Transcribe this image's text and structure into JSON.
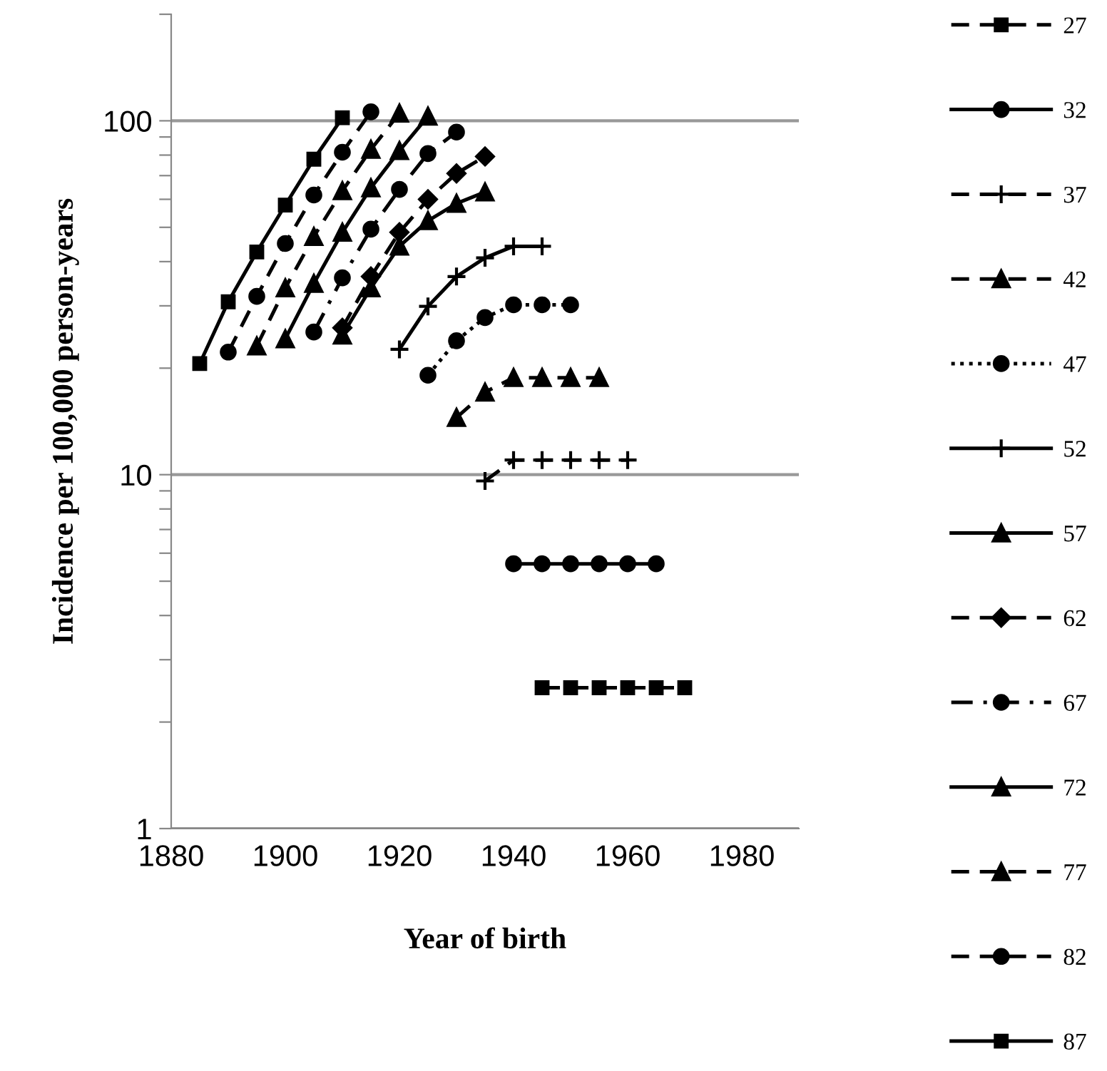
{
  "chart_data": {
    "type": "line",
    "xlabel": "Year of birth",
    "ylabel": "Incidence per 100,000 person-years",
    "log": "y",
    "xlim": [
      1880,
      1990
    ],
    "xticks": [
      1880,
      1900,
      1920,
      1940,
      1960,
      1980
    ],
    "ylim": [
      1,
      200
    ],
    "yticks": [
      1,
      {
        "value": 2,
        "label": null
      },
      {
        "value": 3,
        "label": null
      },
      {
        "value": 4,
        "label": null
      },
      {
        "value": 5,
        "label": null
      },
      {
        "value": 6,
        "label": null
      },
      {
        "value": 7,
        "label": null
      },
      {
        "value": 8,
        "label": null
      },
      {
        "value": 9,
        "label": null
      },
      10,
      {
        "value": 20,
        "label": null
      },
      {
        "value": 30,
        "label": null
      },
      {
        "value": 40,
        "label": null
      },
      {
        "value": 50,
        "label": null
      },
      {
        "value": 60,
        "label": null
      },
      {
        "value": 70,
        "label": null
      },
      {
        "value": 80,
        "label": null
      },
      {
        "value": 90,
        "label": null
      },
      100,
      {
        "value": 200,
        "label": null
      }
    ],
    "grid": "y",
    "legend": "right",
    "series": [
      {
        "name": "27",
        "color": "#000000",
        "marker": "square",
        "line_style": "dashed",
        "x": [
          1945,
          1950,
          1955,
          1960,
          1965,
          1970
        ],
        "values": [
          2.5,
          2.5,
          2.5,
          2.5,
          2.5,
          2.5
        ]
      },
      {
        "name": "32",
        "color": "#000000",
        "marker": "circle",
        "line_style": "solid",
        "x": [
          1940,
          1945,
          1950,
          1955,
          1960,
          1965
        ],
        "values": [
          5.6,
          5.6,
          5.6,
          5.6,
          5.6,
          5.6
        ]
      },
      {
        "name": "37",
        "color": "#000000",
        "marker": "cross",
        "line_style": "dashed",
        "x": [
          1935,
          1940,
          1945,
          1950,
          1955,
          1960
        ],
        "values": [
          9.6,
          11,
          11,
          11,
          11,
          11
        ]
      },
      {
        "name": "42",
        "color": "#000000",
        "marker": "triangle",
        "line_style": "dashed",
        "x": [
          1930,
          1935,
          1940,
          1945,
          1950,
          1955
        ],
        "values": [
          14.5,
          17.1,
          18.8,
          18.8,
          18.8,
          18.8
        ]
      },
      {
        "name": "47",
        "color": "#000000",
        "marker": "circle",
        "line_style": "dotted",
        "x": [
          1925,
          1930,
          1935,
          1940,
          1945,
          1950
        ],
        "values": [
          19.1,
          23.9,
          27.8,
          30.2,
          30.2,
          30.2
        ]
      },
      {
        "name": "52",
        "color": "#000000",
        "marker": "cross",
        "line_style": "solid",
        "x": [
          1920,
          1925,
          1930,
          1935,
          1940,
          1945
        ],
        "values": [
          22.6,
          29.9,
          36.3,
          41,
          44.2,
          44.2
        ]
      },
      {
        "name": "57",
        "color": "#000000",
        "marker": "triangle",
        "line_style": "solid",
        "x": [
          1910,
          1915,
          1920,
          1925,
          1930,
          1935
        ],
        "values": [
          24.8,
          33.7,
          44.2,
          52.2,
          58.4,
          62.9
        ]
      },
      {
        "name": "62",
        "color": "#000000",
        "marker": "diamond",
        "line_style": "dashed",
        "x": [
          1910,
          1915,
          1920,
          1925,
          1930,
          1935
        ],
        "values": [
          26,
          36.3,
          48.4,
          60,
          71,
          79.3
        ]
      },
      {
        "name": "67",
        "color": "#000000",
        "marker": "circle",
        "line_style": "dashdot",
        "x": [
          1905,
          1910,
          1915,
          1920,
          1925,
          1930
        ],
        "values": [
          25.3,
          36,
          49.4,
          64,
          80.8,
          92.9
        ]
      },
      {
        "name": "72",
        "color": "#000000",
        "marker": "triangle",
        "line_style": "solid",
        "x": [
          1900,
          1905,
          1910,
          1915,
          1920,
          1925
        ],
        "values": [
          24.2,
          34.7,
          48.4,
          64.6,
          82.3,
          103
        ]
      },
      {
        "name": "77",
        "color": "#000000",
        "marker": "triangle",
        "line_style": "dashed",
        "x": [
          1895,
          1900,
          1905,
          1910,
          1915,
          1920
        ],
        "values": [
          23.1,
          33.7,
          47.1,
          63.4,
          83,
          105
        ]
      },
      {
        "name": "82",
        "color": "#000000",
        "marker": "circle",
        "line_style": "dashed",
        "x": [
          1890,
          1895,
          1900,
          1905,
          1910,
          1915
        ],
        "values": [
          22.2,
          31.9,
          45,
          61.7,
          81.5,
          106
        ]
      },
      {
        "name": "87",
        "color": "#000000",
        "marker": "square",
        "line_style": "solid",
        "x": [
          1885,
          1890,
          1895,
          1900,
          1905,
          1910
        ],
        "values": [
          20.6,
          30.8,
          42.6,
          57.8,
          77.9,
          102
        ]
      }
    ]
  }
}
